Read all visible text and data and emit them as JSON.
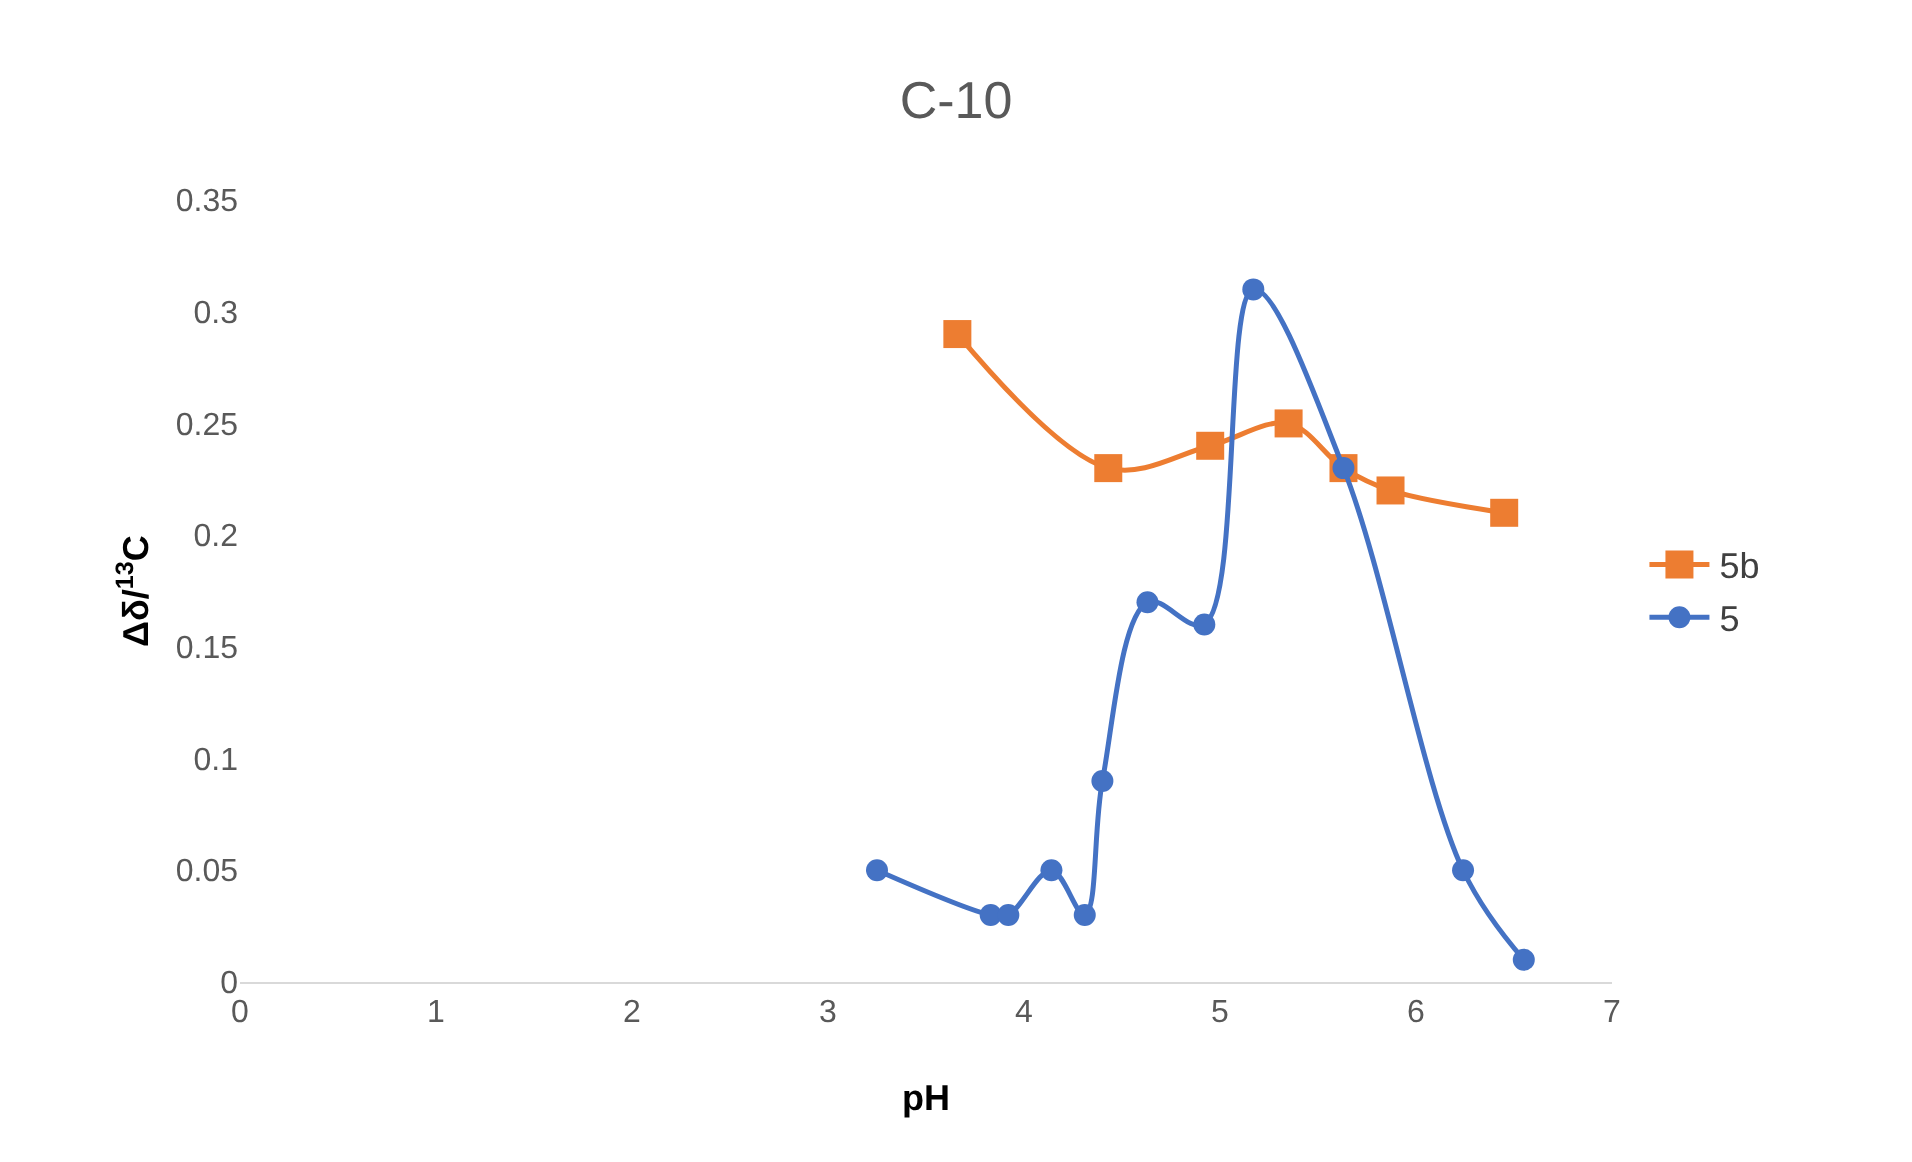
{
  "chart_data": {
    "type": "line",
    "title": "C-10",
    "xlabel": "pH",
    "ylabel": "Δδ/$^{13}$C",
    "xlim": [
      0,
      7
    ],
    "xticks": [
      0,
      1,
      2,
      3,
      4,
      5,
      6,
      7
    ],
    "ylim": [
      0,
      0.35
    ],
    "yticks": [
      0,
      0.05,
      0.1,
      0.15,
      0.2,
      0.25,
      0.3,
      0.35
    ],
    "grid": false,
    "legend": "right",
    "series": [
      {
        "name": "5b",
        "color": "#ed7d31",
        "marker": "square",
        "x": [
          3.66,
          4.43,
          4.95,
          5.35,
          5.63,
          5.87,
          6.45
        ],
        "values": [
          0.29,
          0.23,
          0.24,
          0.25,
          0.23,
          0.22,
          0.21
        ]
      },
      {
        "name": "5",
        "color": "#4472c4",
        "marker": "circle",
        "x": [
          3.25,
          3.83,
          3.92,
          4.14,
          4.31,
          4.4,
          4.63,
          4.92,
          5.17,
          5.63,
          6.24,
          6.55
        ],
        "values": [
          0.05,
          0.03,
          0.03,
          0.05,
          0.03,
          0.09,
          0.17,
          0.16,
          0.31,
          0.23,
          0.05,
          0.01
        ]
      }
    ]
  }
}
